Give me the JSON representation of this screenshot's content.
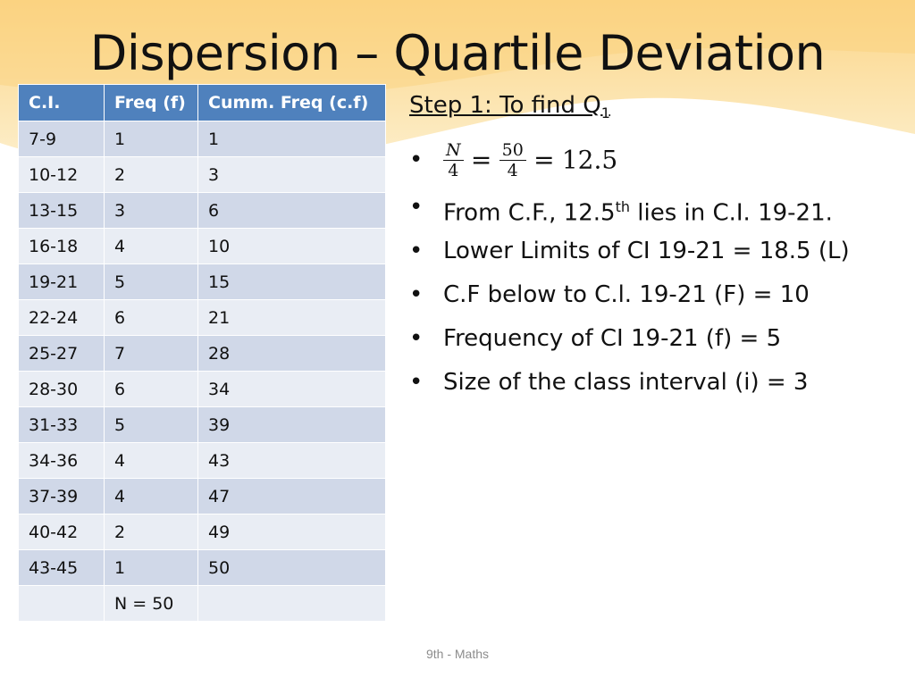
{
  "slide": {
    "title": "Dispersion – Quartile Deviation",
    "footer": "9th - Maths"
  },
  "table": {
    "headers": [
      "C.I.",
      "Freq (f)",
      "Cumm. Freq (c.f)"
    ],
    "rows": [
      [
        "7-9",
        "1",
        "1"
      ],
      [
        "10-12",
        "2",
        "3"
      ],
      [
        "13-15",
        "3",
        "6"
      ],
      [
        "16-18",
        "4",
        "10"
      ],
      [
        "19-21",
        "5",
        "15"
      ],
      [
        "22-24",
        "6",
        "21"
      ],
      [
        "25-27",
        "7",
        "28"
      ],
      [
        "28-30",
        "6",
        "34"
      ],
      [
        "31-33",
        "5",
        "39"
      ],
      [
        "34-36",
        "4",
        "43"
      ],
      [
        "37-39",
        "4",
        "47"
      ],
      [
        "40-42",
        "2",
        "49"
      ],
      [
        "43-45",
        "1",
        "50"
      ],
      [
        "",
        "N = 50",
        ""
      ]
    ]
  },
  "content": {
    "step_text": "Step 1: To find Q",
    "step_sub": "1",
    "bullet": "•",
    "formula": {
      "num1": "N",
      "den1": "4",
      "eq": "=",
      "num2": "50",
      "den2": "4",
      "result": "12.5"
    },
    "point1_pre": "From C.F., 12.5",
    "point1_sup": "th",
    "point1_post": " lies in C.I. 19-21.",
    "point2": "Lower Limits of CI 19-21 = 18.5 (L)",
    "point3": "C.F below to C.l. 19-21 (F) = 10",
    "point4": "Frequency of CI 19-21 (f) = 5",
    "point5": "Size of the class interval (i) = 3"
  },
  "colors": {
    "header_bg": "#4f81bd",
    "row_dark": "#d0d8e8",
    "row_light": "#e9edf4",
    "wave": "#fbd98a"
  }
}
